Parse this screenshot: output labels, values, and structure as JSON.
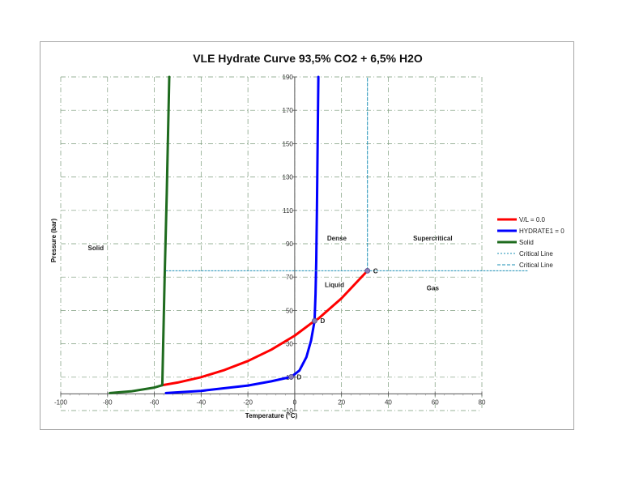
{
  "chart_data": {
    "type": "line",
    "title": "VLE Hydrate Curve 93,5% CO2 + 6,5% H2O",
    "xlabel": "Temperature (°C)",
    "ylabel": "Pressure (bar)",
    "xlim": [
      -100,
      80
    ],
    "ylim": [
      -10,
      190
    ],
    "x_ticks": [
      "-100",
      "-80",
      "-60",
      "-40",
      "-20",
      "0",
      "20",
      "40",
      "60",
      "80"
    ],
    "y_ticks": [
      "-10",
      "10",
      "30",
      "50",
      "70",
      "90",
      "110",
      "130",
      "150",
      "170",
      "190"
    ],
    "grid": true,
    "legend_position": "right",
    "series": [
      {
        "name": "V/L = 0.0",
        "color": "#ff0000",
        "style": "solid",
        "points": [
          [
            -56.6,
            5.2
          ],
          [
            -50,
            6.8
          ],
          [
            -40,
            10.0
          ],
          [
            -30,
            14.3
          ],
          [
            -20,
            19.7
          ],
          [
            -10,
            26.5
          ],
          [
            0,
            34.9
          ],
          [
            8.5,
            43.8
          ],
          [
            10,
            45.0
          ],
          [
            20,
            57.3
          ],
          [
            31.1,
            73.8
          ]
        ]
      },
      {
        "name": "HYDRATE1 = 0",
        "color": "#0000ff",
        "style": "solid",
        "points": [
          [
            -55,
            0.5
          ],
          [
            -40,
            1.8
          ],
          [
            -20,
            5.0
          ],
          [
            -10,
            7.5
          ],
          [
            -1.5,
            10.2
          ],
          [
            2,
            14
          ],
          [
            5,
            22
          ],
          [
            7,
            32
          ],
          [
            8.5,
            43.8
          ],
          [
            8.9,
            60
          ],
          [
            9.2,
            80
          ],
          [
            9.5,
            110
          ],
          [
            9.8,
            150
          ],
          [
            10.1,
            190
          ]
        ]
      },
      {
        "name": "Solid",
        "color": "#1e6b1e",
        "style": "solid",
        "points": [
          [
            -79,
            0.5
          ],
          [
            -70,
            1.5
          ],
          [
            -60,
            3.8
          ],
          [
            -56.6,
            5.2
          ],
          [
            -56.2,
            30
          ],
          [
            -55.6,
            70
          ],
          [
            -54.7,
            120
          ],
          [
            -53.6,
            190
          ]
        ]
      },
      {
        "name": "Critical Line",
        "color": "#1a8fb5",
        "style": "dotted",
        "points": [
          [
            -55,
            73.8
          ],
          [
            100,
            73.8
          ]
        ]
      },
      {
        "name": "Critical Line",
        "color": "#1a8fb5",
        "style": "dashed",
        "points": [
          [
            31.1,
            73.8
          ],
          [
            31.1,
            190
          ]
        ]
      }
    ],
    "markers": [
      {
        "label": "C",
        "x": 31.1,
        "y": 73.8
      },
      {
        "label": "D",
        "x": 8.5,
        "y": 43.8
      },
      {
        "label": "D",
        "x": -1.5,
        "y": 10.2
      }
    ],
    "annotations": [
      {
        "text": "Solid",
        "x": -85,
        "y": 86
      },
      {
        "text": "Dense",
        "x": 18,
        "y": 92
      },
      {
        "text": "Supercritical",
        "x": 59,
        "y": 92
      },
      {
        "text": "Liquid",
        "x": 17,
        "y": 64
      },
      {
        "text": "Gas",
        "x": 59,
        "y": 62
      }
    ]
  }
}
